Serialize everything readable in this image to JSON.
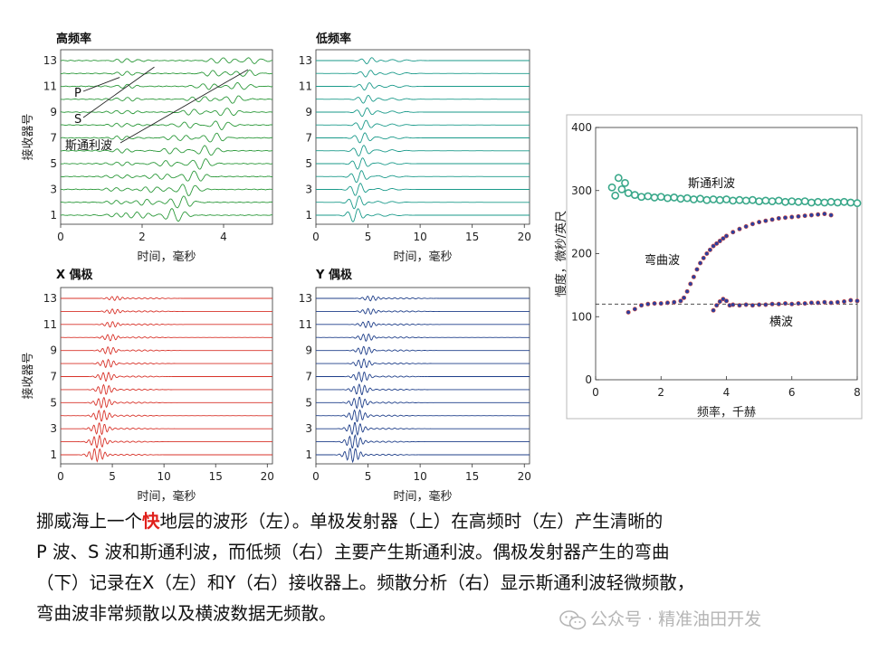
{
  "chart_data": [
    {
      "type": "line",
      "title": "高频率",
      "xlabel": "时间，毫秒",
      "ylabel": "接收器号",
      "xlim": [
        0,
        5.2
      ],
      "xticks": [
        0,
        2,
        4
      ],
      "yticks": [
        1,
        3,
        5,
        7,
        9,
        11,
        13
      ],
      "receivers": [
        1,
        2,
        3,
        4,
        5,
        6,
        7,
        8,
        9,
        10,
        11,
        12,
        13
      ],
      "color": "#2e9a3c",
      "annotations": [
        "P",
        "S",
        "斯通利波"
      ]
    },
    {
      "type": "line",
      "title": "低频率",
      "xlabel": "时间，毫秒",
      "ylabel": "",
      "xlim": [
        0,
        20.5
      ],
      "xticks": [
        0,
        5,
        10,
        15,
        20
      ],
      "yticks": [
        1,
        3,
        5,
        7,
        9,
        11,
        13
      ],
      "receivers": [
        1,
        2,
        3,
        4,
        5,
        6,
        7,
        8,
        9,
        10,
        11,
        12,
        13
      ],
      "color": "#1a9a8a"
    },
    {
      "type": "line",
      "title": "X 偶极",
      "xlabel": "时间，毫秒",
      "ylabel": "接收器号",
      "xlim": [
        0,
        20.5
      ],
      "xticks": [
        0,
        5,
        10,
        15,
        20
      ],
      "yticks": [
        1,
        3,
        5,
        7,
        9,
        11,
        13
      ],
      "receivers": [
        1,
        2,
        3,
        4,
        5,
        6,
        7,
        8,
        9,
        10,
        11,
        12,
        13
      ],
      "color": "#d8332a"
    },
    {
      "type": "line",
      "title": "Y 偶极",
      "xlabel": "时间，毫秒",
      "ylabel": "",
      "xlim": [
        0,
        20.5
      ],
      "xticks": [
        0,
        5,
        10,
        15,
        20
      ],
      "yticks": [
        1,
        3,
        5,
        7,
        9,
        11,
        13
      ],
      "receivers": [
        1,
        2,
        3,
        4,
        5,
        6,
        7,
        8,
        9,
        10,
        11,
        12,
        13
      ],
      "color": "#1f3f8a"
    },
    {
      "type": "scatter",
      "title": "",
      "xlabel": "频率，千赫",
      "ylabel": "慢度，微秒/英尺",
      "xlim": [
        0,
        8
      ],
      "ylim": [
        0,
        400
      ],
      "xticks": [
        0,
        2,
        4,
        6,
        8
      ],
      "yticks": [
        0,
        100,
        200,
        300,
        400
      ],
      "reference_line": 120,
      "annotations": [
        "斯通利波",
        "弯曲波",
        "横波"
      ],
      "series": [
        {
          "name": "斯通利波",
          "color": "#3aa88a",
          "points": [
            [
              0.5,
              305
            ],
            [
              0.6,
              292
            ],
            [
              0.7,
              320
            ],
            [
              0.8,
              302
            ],
            [
              0.9,
              312
            ],
            [
              1.0,
              296
            ],
            [
              1.2,
              293
            ],
            [
              1.4,
              290
            ],
            [
              1.6,
              291
            ],
            [
              1.8,
              289
            ],
            [
              2.0,
              290
            ],
            [
              2.2,
              288
            ],
            [
              2.4,
              289
            ],
            [
              2.6,
              287
            ],
            [
              2.8,
              288
            ],
            [
              3.0,
              286
            ],
            [
              3.2,
              287
            ],
            [
              3.4,
              285
            ],
            [
              3.6,
              286
            ],
            [
              3.8,
              285
            ],
            [
              4.0,
              286
            ],
            [
              4.2,
              284
            ],
            [
              4.4,
              285
            ],
            [
              4.6,
              284
            ],
            [
              4.8,
              285
            ],
            [
              5.0,
              283
            ],
            [
              5.2,
              284
            ],
            [
              5.4,
              283
            ],
            [
              5.6,
              284
            ],
            [
              5.8,
              282
            ],
            [
              6.0,
              283
            ],
            [
              6.2,
              282
            ],
            [
              6.4,
              283
            ],
            [
              6.6,
              281
            ],
            [
              6.8,
              282
            ],
            [
              7.0,
              281
            ],
            [
              7.2,
              282
            ],
            [
              7.4,
              281
            ],
            [
              7.6,
              282
            ],
            [
              7.8,
              281
            ],
            [
              8.0,
              280
            ]
          ]
        },
        {
          "name": "弯曲波",
          "color": "#2a3f9e",
          "points": [
            [
              1.0,
              107
            ],
            [
              1.2,
              112
            ],
            [
              1.4,
              118
            ],
            [
              1.6,
              120
            ],
            [
              1.8,
              121
            ],
            [
              2.0,
              121
            ],
            [
              2.2,
              122
            ],
            [
              2.4,
              123
            ],
            [
              2.6,
              125
            ],
            [
              2.7,
              130
            ],
            [
              2.8,
              140
            ],
            [
              2.9,
              152
            ],
            [
              3.0,
              163
            ],
            [
              3.1,
              175
            ],
            [
              3.2,
              185
            ],
            [
              3.3,
              193
            ],
            [
              3.4,
              200
            ],
            [
              3.5,
              206
            ],
            [
              3.6,
              212
            ],
            [
              3.7,
              216
            ],
            [
              3.8,
              220
            ],
            [
              3.9,
              224
            ],
            [
              4.0,
              228
            ],
            [
              4.2,
              234
            ],
            [
              4.4,
              239
            ],
            [
              4.6,
              243
            ],
            [
              4.8,
              247
            ],
            [
              5.0,
              250
            ],
            [
              5.2,
              252
            ],
            [
              5.4,
              254
            ],
            [
              5.6,
              256
            ],
            [
              5.8,
              257
            ],
            [
              6.0,
              258
            ],
            [
              6.2,
              259
            ],
            [
              6.4,
              260
            ],
            [
              6.6,
              261
            ],
            [
              6.8,
              262
            ],
            [
              7.0,
              263
            ],
            [
              7.2,
              261
            ]
          ]
        },
        {
          "name": "横波",
          "color": "#2a3f9e",
          "points": [
            [
              3.6,
              110
            ],
            [
              3.7,
              118
            ],
            [
              3.8,
              124
            ],
            [
              3.9,
              128
            ],
            [
              4.0,
              125
            ],
            [
              4.1,
              118
            ],
            [
              4.2,
              119
            ],
            [
              4.4,
              118
            ],
            [
              4.6,
              119
            ],
            [
              4.8,
              118
            ],
            [
              5.0,
              119
            ],
            [
              5.2,
              119
            ],
            [
              5.4,
              120
            ],
            [
              5.6,
              120
            ],
            [
              5.8,
              121
            ],
            [
              6.0,
              120
            ],
            [
              6.2,
              121
            ],
            [
              6.4,
              121
            ],
            [
              6.6,
              122
            ],
            [
              6.8,
              122
            ],
            [
              7.0,
              123
            ],
            [
              7.2,
              122
            ],
            [
              7.4,
              123
            ],
            [
              7.6,
              124
            ],
            [
              7.8,
              126
            ],
            [
              8.0,
              125
            ]
          ]
        }
      ]
    }
  ],
  "caption": {
    "lines": [
      {
        "before": "挪威海上一个",
        "highlight": "快",
        "after": "地层的波形（左）。单极发射器（上）在高频时（左）产生清晰的"
      },
      {
        "text": "P 波、S 波和斯通利波，而低频（右）主要产生斯通利波。偶极发射器产生的弯曲"
      },
      {
        "text": "（下）记录在X（左）和Y（右）接收器上。频散分析（右）显示斯通利波轻微频散，"
      },
      {
        "text": "弯曲波非常频散以及横波数据无频散。"
      }
    ],
    "highlight_color": "#e0201b"
  },
  "watermark": {
    "text": "公众号 · 精准油田开发"
  }
}
